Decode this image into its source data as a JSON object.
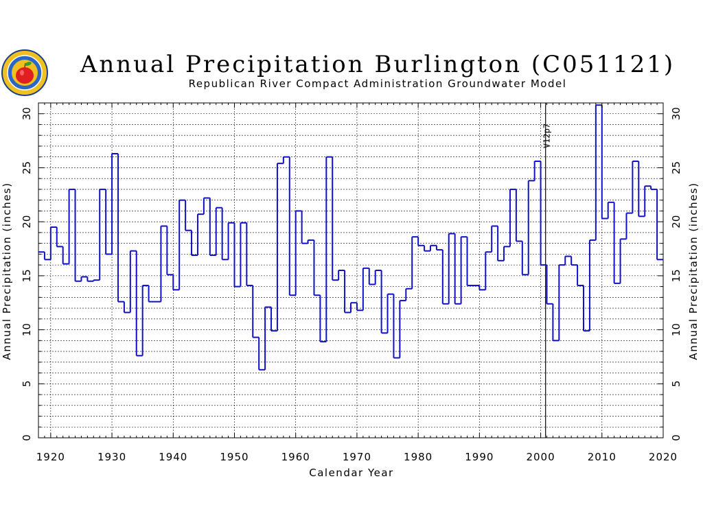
{
  "header": {
    "title": "Annual Precipitation Burlington (C051121)",
    "subtitle": "Republican River Compact Administration Groundwater Model"
  },
  "logo": {
    "name": "apple-seal-logo",
    "colors": [
      "#f0c020",
      "#2a66c8",
      "#e02020",
      "#30a030"
    ]
  },
  "colors": {
    "series": "#1010c8",
    "axis": "#000000",
    "grid": "#000000"
  },
  "chart_data": {
    "type": "line",
    "style": "step",
    "title": "Annual Precipitation Burlington (C051121)",
    "subtitle": "Republican River Compact Administration Groundwater Model",
    "xlabel": "Calendar Year",
    "ylabel": "Annual Precipitation (inches)",
    "ylabel_right": "Annual Precipitation (inches)",
    "xlim": [
      1918,
      2020
    ],
    "ylim": [
      0,
      31
    ],
    "xticks": [
      1920,
      1930,
      1940,
      1950,
      1960,
      1970,
      1980,
      1990,
      2000,
      2010,
      2020
    ],
    "yticks": [
      0,
      5,
      10,
      15,
      20,
      25,
      30
    ],
    "grid": true,
    "annotation": {
      "x": 2000.8,
      "label": "V12p7"
    },
    "x": [
      1918,
      1919,
      1920,
      1921,
      1922,
      1923,
      1924,
      1925,
      1926,
      1927,
      1928,
      1929,
      1930,
      1931,
      1932,
      1933,
      1934,
      1935,
      1936,
      1937,
      1938,
      1939,
      1940,
      1941,
      1942,
      1943,
      1944,
      1945,
      1946,
      1947,
      1948,
      1949,
      1950,
      1951,
      1952,
      1953,
      1954,
      1955,
      1956,
      1957,
      1958,
      1959,
      1960,
      1961,
      1962,
      1963,
      1964,
      1965,
      1966,
      1967,
      1968,
      1969,
      1970,
      1971,
      1972,
      1973,
      1974,
      1975,
      1976,
      1977,
      1978,
      1979,
      1980,
      1981,
      1982,
      1983,
      1984,
      1985,
      1986,
      1987,
      1988,
      1989,
      1990,
      1991,
      1992,
      1993,
      1994,
      1995,
      1996,
      1997,
      1998,
      1999,
      2000,
      2001,
      2002,
      2003,
      2004,
      2005,
      2006,
      2007,
      2008,
      2009,
      2010,
      2011,
      2012,
      2013,
      2014,
      2015,
      2016,
      2017,
      2018,
      2019
    ],
    "values": [
      17.2,
      16.5,
      19.5,
      17.7,
      16.1,
      23.0,
      14.5,
      14.9,
      14.5,
      14.6,
      23.0,
      17.0,
      26.3,
      12.6,
      11.6,
      17.3,
      7.6,
      14.1,
      12.6,
      12.6,
      19.6,
      15.1,
      13.7,
      22.0,
      19.2,
      16.9,
      20.7,
      22.2,
      16.9,
      21.3,
      16.5,
      19.9,
      14.0,
      19.9,
      14.1,
      9.3,
      6.3,
      12.1,
      9.9,
      25.4,
      26.0,
      13.2,
      21.0,
      18.0,
      18.3,
      13.2,
      8.9,
      26.0,
      14.6,
      15.5,
      11.6,
      12.5,
      11.8,
      15.7,
      14.2,
      15.5,
      9.7,
      13.3,
      7.4,
      12.7,
      13.8,
      18.6,
      17.8,
      17.3,
      17.8,
      17.4,
      12.4,
      18.9,
      12.4,
      18.6,
      14.1,
      14.1,
      13.7,
      17.2,
      19.6,
      16.4,
      17.7,
      23.0,
      18.2,
      15.1,
      23.8,
      25.6,
      16.0,
      12.4,
      9.0,
      16.0,
      16.8,
      16.0,
      14.1,
      9.9,
      18.3,
      30.8,
      20.3,
      21.8,
      14.3,
      18.4,
      20.8,
      25.6,
      20.5,
      23.3,
      23.0,
      16.5
    ]
  }
}
